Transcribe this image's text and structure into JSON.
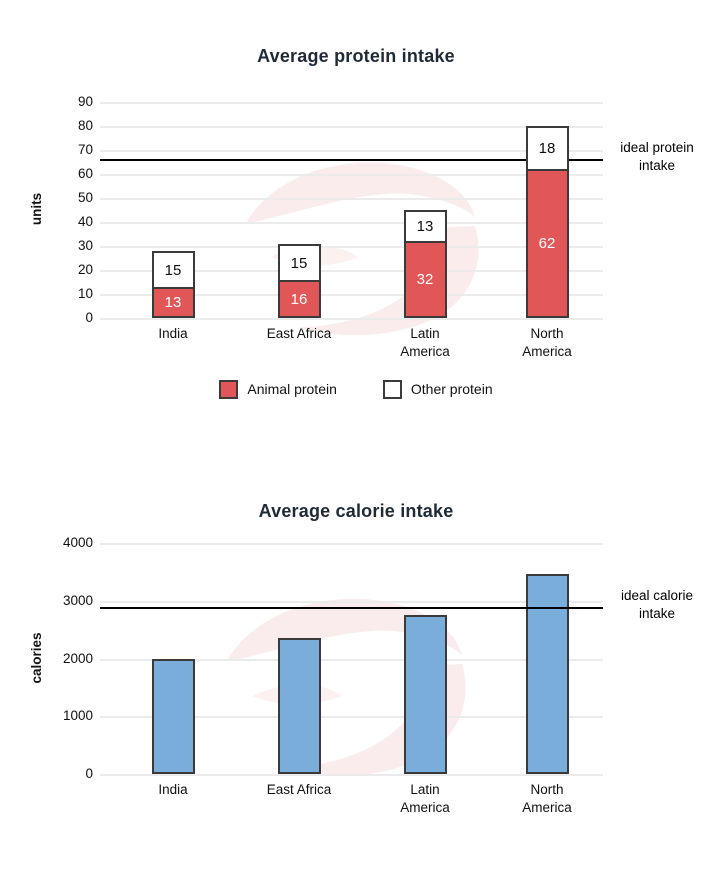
{
  "chart_data": [
    {
      "type": "bar",
      "stacked": true,
      "title": "Average protein intake",
      "ylabel": "units",
      "xlabel": "",
      "categories": [
        "India",
        "East Africa",
        "Latin America",
        "North America"
      ],
      "category_lines": [
        [
          "India"
        ],
        [
          "East Africa"
        ],
        [
          "Latin",
          "America"
        ],
        [
          "North",
          "America"
        ]
      ],
      "series": [
        {
          "name": "Animal protein",
          "color": "#e15757",
          "text_color": "#ffffff",
          "values": [
            13,
            16,
            32,
            62
          ]
        },
        {
          "name": "Other protein",
          "color": "#ffffff",
          "text_color": "#111111",
          "values": [
            15,
            15,
            13,
            18
          ]
        }
      ],
      "totals": [
        28,
        31,
        45,
        80
      ],
      "yticks": [
        0,
        10,
        20,
        30,
        40,
        50,
        60,
        70,
        80,
        90
      ],
      "ylim": [
        0,
        90
      ],
      "grid": true,
      "legend_position": "bottom",
      "guideline": {
        "value": 66,
        "label": "ideal protein intake"
      }
    },
    {
      "type": "bar",
      "stacked": false,
      "title": "Average calorie intake",
      "ylabel": "calories",
      "xlabel": "",
      "categories": [
        "India",
        "East Africa",
        "Latin America",
        "North America"
      ],
      "category_lines": [
        [
          "India"
        ],
        [
          "East Africa"
        ],
        [
          "Latin",
          "America"
        ],
        [
          "North",
          "America"
        ]
      ],
      "series": [
        {
          "name": "calories",
          "color": "#7badda",
          "text_color": "#111111",
          "values": [
            2000,
            2350,
            2750,
            3470
          ]
        }
      ],
      "yticks": [
        0,
        1000,
        2000,
        3000,
        4000
      ],
      "ylim": [
        0,
        4000
      ],
      "grid": true,
      "legend_position": "none",
      "guideline": {
        "value": 2870,
        "label": "ideal calorie intake"
      }
    }
  ],
  "legend": {
    "items": [
      {
        "label": "Animal protein",
        "color": "#e15757"
      },
      {
        "label": "Other protein",
        "color": "#ffffff"
      }
    ]
  },
  "colors": {
    "bar_border": "#3a3a3a",
    "gridline": "#ebebeb",
    "guideline": "#000000",
    "title": "#1f2a37",
    "text": "#111111",
    "watermark": "#f5dcdc"
  }
}
